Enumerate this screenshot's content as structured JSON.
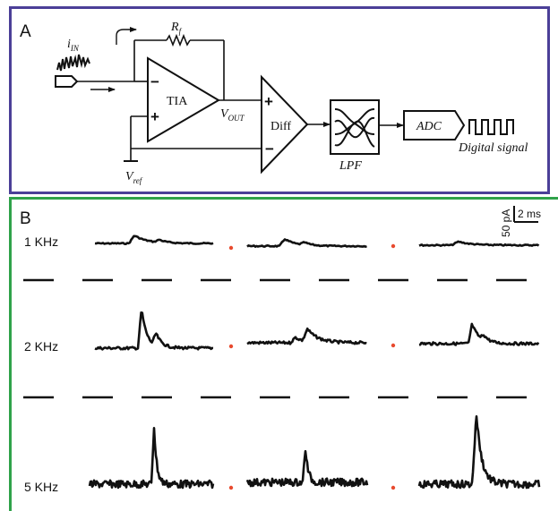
{
  "colors": {
    "panel_a_border": "#4b3f98",
    "panel_b_border": "#2fa24a",
    "ink": "#111111",
    "separator_dot": "#e84a2e"
  },
  "panel_a": {
    "label": "A",
    "input_current": {
      "main": "i",
      "sub": "IN"
    },
    "feedback_resistor": {
      "main": "R",
      "sub": "f"
    },
    "tia_label": "TIA",
    "vout": {
      "main": "V",
      "sub": "OUT"
    },
    "vref": {
      "main": "V",
      "sub": "ref"
    },
    "diff_label": "Diff",
    "lpf_label": "LPF",
    "adc_label": "ADC",
    "digital_signal_label": "Digital signal",
    "opamp_minus": "−",
    "opamp_plus": "+",
    "diff_plus": "+",
    "diff_minus": "−"
  },
  "panel_b": {
    "label": "B",
    "scale_bar": {
      "current": "50 pA",
      "time": "2 ms"
    },
    "rows": [
      {
        "label": "1 KHz",
        "traces": 3
      },
      {
        "label": "2 KHz",
        "traces": 3
      },
      {
        "label": "5 KHz",
        "traces": 3
      }
    ]
  }
}
